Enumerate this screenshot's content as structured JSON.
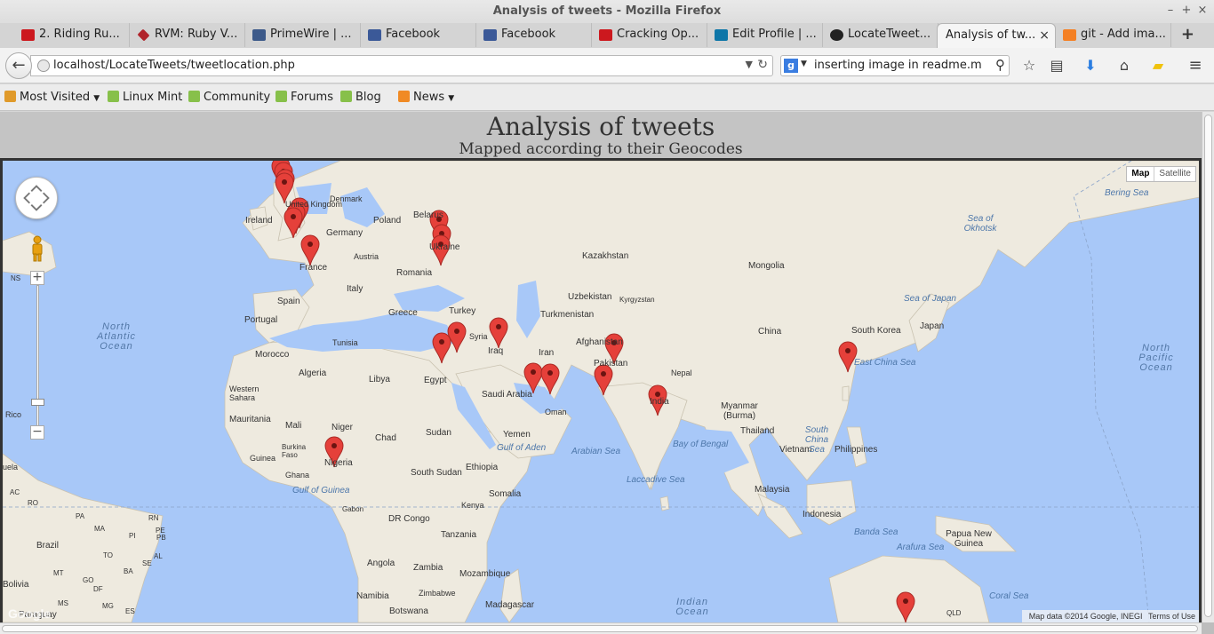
{
  "window": {
    "title": "Analysis of tweets - Mozilla Firefox"
  },
  "tabs": [
    {
      "label": "2. Riding Ru...",
      "icon": "youtube-icon"
    },
    {
      "label": "RVM: Ruby V...",
      "icon": "ruby-gem-icon"
    },
    {
      "label": "PrimeWire | ...",
      "icon": "primewire-icon"
    },
    {
      "label": "Facebook",
      "icon": "facebook-icon"
    },
    {
      "label": "Facebook",
      "icon": "facebook-icon"
    },
    {
      "label": "Cracking Op...",
      "icon": "youtube-icon"
    },
    {
      "label": "Edit Profile | ...",
      "icon": "linkedin-icon"
    },
    {
      "label": "LocateTweet...",
      "icon": "github-icon"
    },
    {
      "label": "Analysis of tw...",
      "icon": "none",
      "active": true
    },
    {
      "label": "git - Add ima...",
      "icon": "stackoverflow-icon"
    }
  ],
  "navbar": {
    "url": "localhost/LocateTweets/tweetlocation.php",
    "search_engine": "g",
    "search_text": "inserting image in readme.m"
  },
  "bookmarks": [
    {
      "label": "Most Visited",
      "dropdown": true,
      "icon": "most-visited-icon"
    },
    {
      "label": "Linux Mint",
      "icon": "mint-icon"
    },
    {
      "label": "Community",
      "icon": "mint-icon"
    },
    {
      "label": "Forums",
      "icon": "mint-icon"
    },
    {
      "label": "Blog",
      "icon": "mint-icon"
    },
    {
      "label": "News",
      "dropdown": true,
      "icon": "rss-icon"
    }
  ],
  "page": {
    "title": "Analysis of tweets",
    "subtitle": "Mapped according to their Geocodes"
  },
  "map": {
    "type_control": {
      "map": "Map",
      "satellite": "Satellite"
    },
    "attribution": "Map data ©2014 Google, INEGI",
    "terms": "Terms of Use",
    "logo": "Google",
    "labels": {
      "ireland": "Ireland",
      "united_kingdom": "United Kingdom",
      "denmark": "Denmark",
      "germany": "Germany",
      "poland": "Poland",
      "belarus": "Belarus",
      "ukraine": "Ukraine",
      "austria": "Austria",
      "france": "France",
      "italy": "Italy",
      "romania": "Romania",
      "spain": "Spain",
      "portugal": "Portugal",
      "greece": "Greece",
      "turkey": "Turkey",
      "tunisia": "Tunisia",
      "morocco": "Morocco",
      "algeria": "Algeria",
      "libya": "Libya",
      "egypt": "Egypt",
      "syria": "Syria",
      "iraq": "Iraq",
      "iran": "Iran",
      "saudi_arabia": "Saudi Arabia",
      "oman": "Oman",
      "yemen": "Yemen",
      "western_sahara": "Western Sahara",
      "mauritania": "Mauritania",
      "mali": "Mali",
      "niger": "Niger",
      "chad": "Chad",
      "sudan": "Sudan",
      "burkina_faso": "Burkina Faso",
      "guinea": "Guinea",
      "ghana": "Ghana",
      "nigeria": "Nigeria",
      "south_sudan": "South Sudan",
      "ethiopia": "Ethiopia",
      "somalia": "Somalia",
      "kenya": "Kenya",
      "gabon": "Gabon",
      "dr_congo": "DR Congo",
      "tanzania": "Tanzania",
      "angola": "Angola",
      "zambia": "Zambia",
      "zimbabwe": "Zimbabwe",
      "namibia": "Namibia",
      "botswana": "Botswana",
      "mozambique": "Mozambique",
      "madagascar": "Madagascar",
      "kazakhstan": "Kazakhstan",
      "uzbekistan": "Uzbekistan",
      "kyrgyzstan": "Kyrgyzstan",
      "turkmenistan": "Turkmenistan",
      "afghanistan": "Afghanistan",
      "pakistan": "Pakistan",
      "india": "India",
      "nepal": "Nepal",
      "mongolia": "Mongolia",
      "china": "China",
      "south_korea": "South Korea",
      "japan": "Japan",
      "myanmar": "Myanmar (Burma)",
      "thailand": "Thailand",
      "vietnam": "Vietnam",
      "philippines": "Philippines",
      "malaysia": "Malaysia",
      "indonesia": "Indonesia",
      "papua_new_guinea": "Papua New Guinea",
      "brazil": "Brazil",
      "bolivia": "Bolivia",
      "paraguay": "Paraguay",
      "rico": "Rico",
      "ns": "NS",
      "qld": "QLD",
      "arabian_sea": "Arabian Sea",
      "bay_of_bengal": "Bay of Bengal",
      "laccadive_sea": "Laccadive Sea",
      "south_china_sea": "South China Sea",
      "east_china_sea": "East China Sea",
      "sea_of_japan": "Sea of Japan",
      "sea_of_okhotsk": "Sea of Okhotsk",
      "bering_sea": "Bering Sea",
      "banda_sea": "Banda Sea",
      "arafura_sea": "Arafura Sea",
      "coral_sea": "Coral Sea",
      "gulf_of_guinea": "Gulf of Guinea",
      "gulf_of_aden": "Gulf of Aden",
      "north_atlantic_ocean": "North Atlantic Ocean",
      "north_pacific_ocean": "North Pacific Ocean",
      "indian_ocean": "Indian Ocean",
      "pe": "PE",
      "rn": "RN",
      "pb": "PB",
      "al": "AL",
      "se": "SE",
      "ba": "BA",
      "to": "TO",
      "go": "GO",
      "ma": "MA",
      "pi": "PI",
      "mt": "MT",
      "ms": "MS",
      "es": "ES",
      "df": "DF",
      "mg": "MG",
      "pa": "PA",
      "ac": "AC",
      "ro": "RO",
      "uela": "uela"
    },
    "markers": [
      "uk-north-1",
      "uk-north-2",
      "uk-north-3",
      "uk-north-4",
      "uk-south-1",
      "uk-south-2",
      "uk-south-3",
      "france",
      "belarus",
      "ukraine-1",
      "ukraine-2",
      "israel",
      "lebanon",
      "iraq",
      "gulf-1",
      "gulf-2",
      "pakistan-north",
      "pakistan-south",
      "india",
      "china-east",
      "nigeria",
      "australia"
    ]
  },
  "colors": {
    "water": "#a8c8f8",
    "land": "#eeeadf",
    "marker": "#e5403a",
    "header_bg": "#c4c4c4"
  }
}
